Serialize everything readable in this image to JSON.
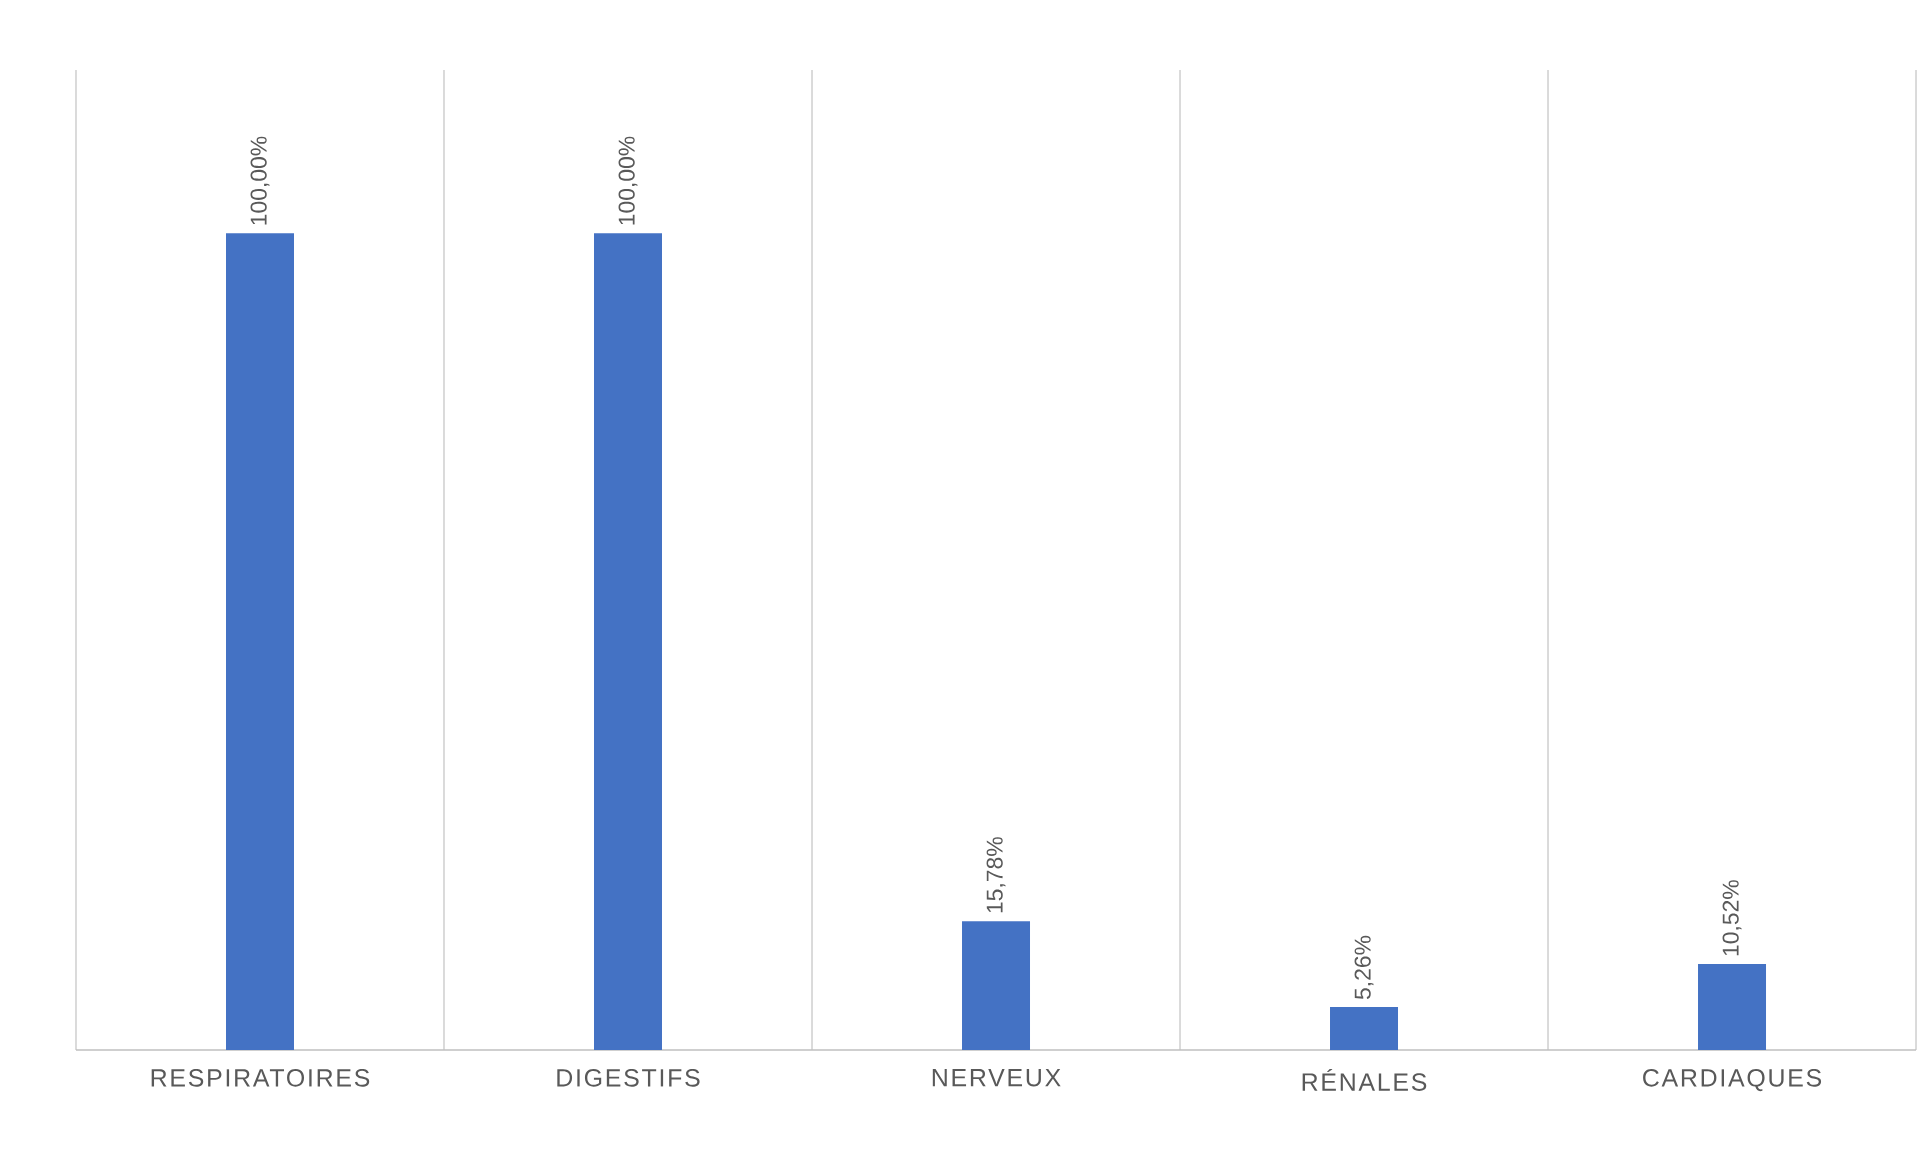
{
  "chart_data": {
    "type": "bar",
    "categories": [
      "RESPIRATOIRES",
      "DIGESTIFS",
      "NERVEUX",
      "RÉNALES",
      "CARDIAQUES"
    ],
    "values": [
      100,
      100,
      15.78,
      5.26,
      10.52
    ],
    "value_labels": [
      "100,00%",
      "100,00%",
      "15,78%",
      "5,26%",
      "10,52%"
    ],
    "color": "#4472c4",
    "grid": "x"
  }
}
